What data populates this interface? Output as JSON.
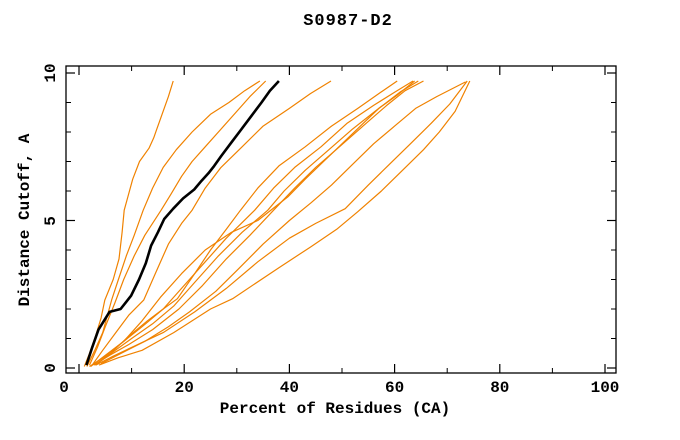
{
  "chart_data": {
    "type": "line",
    "title": "S0987-D2",
    "xlabel": "Percent of Residues (CA)",
    "ylabel": "Distance Cutoff, A",
    "xlim": [
      0,
      100
    ],
    "ylim": [
      0,
      10
    ],
    "x_major_ticks": [
      0,
      20,
      40,
      60,
      80,
      100
    ],
    "x_minor_ticks": [
      10,
      30,
      50,
      70,
      90
    ],
    "y_major_ticks": [
      0,
      5,
      10
    ],
    "y_minor_ticks": [
      1,
      2,
      3,
      4,
      6,
      7,
      8,
      9
    ],
    "x_tick_labels": [
      "0",
      "20",
      "40",
      "60",
      "80",
      "100"
    ],
    "y_tick_labels": [
      "0",
      "5",
      "10"
    ],
    "grid": false,
    "legend": "none",
    "colors": {
      "model_orange": "#f08200",
      "highlight_black": "#000000",
      "frame": "#000000"
    },
    "series": [
      {
        "name": "orange-1",
        "color": "#f08200",
        "width": 1.2,
        "points": [
          [
            1.0,
            0.05
          ],
          [
            2.0,
            0.5
          ],
          [
            3.0,
            1.0
          ],
          [
            4.2,
            1.7
          ],
          [
            4.9,
            2.3
          ],
          [
            6.5,
            3.0
          ],
          [
            7.6,
            3.7
          ],
          [
            8.2,
            4.6
          ],
          [
            8.6,
            5.35
          ],
          [
            10.2,
            6.4
          ],
          [
            11.5,
            7.0
          ],
          [
            13.3,
            7.45
          ],
          [
            14.2,
            7.8
          ],
          [
            14.8,
            8.1
          ],
          [
            16.3,
            8.85
          ],
          [
            17.0,
            9.2
          ],
          [
            17.9,
            9.73
          ]
        ]
      },
      {
        "name": "orange-2",
        "color": "#f08200",
        "width": 1.2,
        "points": [
          [
            1.5,
            0.05
          ],
          [
            3.0,
            0.6
          ],
          [
            4.5,
            1.2
          ],
          [
            6.2,
            2.3
          ],
          [
            7.5,
            3.0
          ],
          [
            9.0,
            3.8
          ],
          [
            10.5,
            4.5
          ],
          [
            12.2,
            5.35
          ],
          [
            14.0,
            6.1
          ],
          [
            16.0,
            6.8
          ],
          [
            18.5,
            7.4
          ],
          [
            21.5,
            8.0
          ],
          [
            25.0,
            8.6
          ],
          [
            28.5,
            9.0
          ],
          [
            31.5,
            9.4
          ],
          [
            34.4,
            9.73
          ]
        ]
      },
      {
        "name": "orange-3",
        "color": "#f08200",
        "width": 1.2,
        "points": [
          [
            2.0,
            0.1
          ],
          [
            3.5,
            0.7
          ],
          [
            5.0,
            1.4
          ],
          [
            6.8,
            2.2
          ],
          [
            8.5,
            3.0
          ],
          [
            10.5,
            3.8
          ],
          [
            12.5,
            4.5
          ],
          [
            15.6,
            5.35
          ],
          [
            17.5,
            5.9
          ],
          [
            19.5,
            6.5
          ],
          [
            21.5,
            7.0
          ],
          [
            24.0,
            7.5
          ],
          [
            27.0,
            8.1
          ],
          [
            30.0,
            8.7
          ],
          [
            32.5,
            9.2
          ],
          [
            35.5,
            9.73
          ]
        ]
      },
      {
        "name": "orange-4",
        "color": "#f08200",
        "width": 1.2,
        "points": [
          [
            2.5,
            0.1
          ],
          [
            4.5,
            0.6
          ],
          [
            7.0,
            1.2
          ],
          [
            9.5,
            1.8
          ],
          [
            12.3,
            2.3
          ],
          [
            14.5,
            3.2
          ],
          [
            17.0,
            4.2
          ],
          [
            19.5,
            4.9
          ],
          [
            21.5,
            5.35
          ],
          [
            24.0,
            6.1
          ],
          [
            27.0,
            6.8
          ],
          [
            31.0,
            7.5
          ],
          [
            35.0,
            8.2
          ],
          [
            40.0,
            8.8
          ],
          [
            44.0,
            9.3
          ],
          [
            47.9,
            9.73
          ]
        ]
      },
      {
        "name": "orange-5",
        "color": "#f08200",
        "width": 1.2,
        "points": [
          [
            3.0,
            0.1
          ],
          [
            6.0,
            0.5
          ],
          [
            9.0,
            1.0
          ],
          [
            13.0,
            1.6
          ],
          [
            16.0,
            2.0
          ],
          [
            18.7,
            2.35
          ],
          [
            22.0,
            3.2
          ],
          [
            25.0,
            4.0
          ],
          [
            28.0,
            4.7
          ],
          [
            30.7,
            5.35
          ],
          [
            34.0,
            6.1
          ],
          [
            38.0,
            6.85
          ],
          [
            43.0,
            7.5
          ],
          [
            48.0,
            8.2
          ],
          [
            53.0,
            8.8
          ],
          [
            57.0,
            9.3
          ],
          [
            60.5,
            9.73
          ]
        ]
      },
      {
        "name": "orange-6",
        "color": "#f08200",
        "width": 1.2,
        "points": [
          [
            2.0,
            0.05
          ],
          [
            5.0,
            0.4
          ],
          [
            8.5,
            0.9
          ],
          [
            12.0,
            1.4
          ],
          [
            16.0,
            2.0
          ],
          [
            20.0,
            2.8
          ],
          [
            24.0,
            3.6
          ],
          [
            28.0,
            4.4
          ],
          [
            33.4,
            5.35
          ],
          [
            37.0,
            6.1
          ],
          [
            41.0,
            6.8
          ],
          [
            46.0,
            7.5
          ],
          [
            51.0,
            8.3
          ],
          [
            56.0,
            8.9
          ],
          [
            60.0,
            9.35
          ],
          [
            63.5,
            9.73
          ]
        ]
      },
      {
        "name": "orange-7",
        "color": "#f08200",
        "width": 1.2,
        "points": [
          [
            3.5,
            0.15
          ],
          [
            6.5,
            0.55
          ],
          [
            10.0,
            1.0
          ],
          [
            14.0,
            1.5
          ],
          [
            18.0,
            2.1
          ],
          [
            22.0,
            2.9
          ],
          [
            26.5,
            3.8
          ],
          [
            31.0,
            4.6
          ],
          [
            35.9,
            5.35
          ],
          [
            39.0,
            6.0
          ],
          [
            43.0,
            6.7
          ],
          [
            47.5,
            7.4
          ],
          [
            52.0,
            8.1
          ],
          [
            57.0,
            8.8
          ],
          [
            61.0,
            9.35
          ],
          [
            64.5,
            9.73
          ]
        ]
      },
      {
        "name": "orange-8",
        "color": "#f08200",
        "width": 1.2,
        "points": [
          [
            2.8,
            0.1
          ],
          [
            6.0,
            0.45
          ],
          [
            9.5,
            0.8
          ],
          [
            14.0,
            1.3
          ],
          [
            19.0,
            2.0
          ],
          [
            23.5,
            2.8
          ],
          [
            28.0,
            3.7
          ],
          [
            32.5,
            4.5
          ],
          [
            37.0,
            5.35
          ],
          [
            41.0,
            6.1
          ],
          [
            45.0,
            6.8
          ],
          [
            49.5,
            7.5
          ],
          [
            54.0,
            8.2
          ],
          [
            58.5,
            8.9
          ],
          [
            62.0,
            9.4
          ],
          [
            65.5,
            9.73
          ]
        ]
      },
      {
        "name": "orange-9",
        "color": "#f08200",
        "width": 1.2,
        "points": [
          [
            3.2,
            0.1
          ],
          [
            6.5,
            0.4
          ],
          [
            10.0,
            0.7
          ],
          [
            16.0,
            1.2
          ],
          [
            22.0,
            1.9
          ],
          [
            28.0,
            2.7
          ],
          [
            34.0,
            3.6
          ],
          [
            40.0,
            4.4
          ],
          [
            45.0,
            4.9
          ],
          [
            50.6,
            5.4
          ],
          [
            55.0,
            6.2
          ],
          [
            59.0,
            6.9
          ],
          [
            63.0,
            7.6
          ],
          [
            67.0,
            8.3
          ],
          [
            70.5,
            8.95
          ],
          [
            73.8,
            9.73
          ]
        ]
      },
      {
        "name": "orange-10",
        "color": "#f08200",
        "width": 1.2,
        "points": [
          [
            3.8,
            0.1
          ],
          [
            7.5,
            0.35
          ],
          [
            12.0,
            0.6
          ],
          [
            18.0,
            1.2
          ],
          [
            25.0,
            2.0
          ],
          [
            29.2,
            2.35
          ],
          [
            38.0,
            3.4
          ],
          [
            44.0,
            4.1
          ],
          [
            49.0,
            4.7
          ],
          [
            53.0,
            5.3
          ],
          [
            57.5,
            6.0
          ],
          [
            61.5,
            6.7
          ],
          [
            65.5,
            7.4
          ],
          [
            68.5,
            8.0
          ],
          [
            71.5,
            8.7
          ],
          [
            74.3,
            9.73
          ]
        ]
      },
      {
        "name": "orange-11",
        "color": "#f08200",
        "width": 1.2,
        "points": [
          [
            2.2,
            0.05
          ],
          [
            5.5,
            0.5
          ],
          [
            8.5,
            0.9
          ],
          [
            12.0,
            1.6
          ],
          [
            15.5,
            2.4
          ],
          [
            19.5,
            3.2
          ],
          [
            24.0,
            4.0
          ],
          [
            29.0,
            4.6
          ],
          [
            34.0,
            5.0
          ],
          [
            39.7,
            5.8
          ],
          [
            43.0,
            6.4
          ],
          [
            46.5,
            7.0
          ],
          [
            50.0,
            7.6
          ],
          [
            53.5,
            8.2
          ],
          [
            57.0,
            8.8
          ],
          [
            60.5,
            9.25
          ],
          [
            63.8,
            9.73
          ]
        ]
      },
      {
        "name": "orange-12",
        "color": "#f08200",
        "width": 1.2,
        "points": [
          [
            4.2,
            0.15
          ],
          [
            8.0,
            0.5
          ],
          [
            12.5,
            0.9
          ],
          [
            17.0,
            1.4
          ],
          [
            21.0,
            1.9
          ],
          [
            26.0,
            2.6
          ],
          [
            30.0,
            3.3
          ],
          [
            35.0,
            4.2
          ],
          [
            40.0,
            5.0
          ],
          [
            44.1,
            5.6
          ],
          [
            48.0,
            6.2
          ],
          [
            52.0,
            6.9
          ],
          [
            56.0,
            7.6
          ],
          [
            60.0,
            8.2
          ],
          [
            64.0,
            8.8
          ],
          [
            68.0,
            9.2
          ],
          [
            73.5,
            9.7
          ]
        ]
      },
      {
        "name": "black-highlight",
        "color": "#000000",
        "width": 2.6,
        "points": [
          [
            1.4,
            0.1
          ],
          [
            2.5,
            0.7
          ],
          [
            3.7,
            1.3
          ],
          [
            5.8,
            1.9
          ],
          [
            7.9,
            2.0
          ],
          [
            9.9,
            2.45
          ],
          [
            11.4,
            3.0
          ],
          [
            12.7,
            3.55
          ],
          [
            13.7,
            4.15
          ],
          [
            15.0,
            4.6
          ],
          [
            16.2,
            5.05
          ],
          [
            17.9,
            5.4
          ],
          [
            19.8,
            5.75
          ],
          [
            21.9,
            6.05
          ],
          [
            23.3,
            6.35
          ],
          [
            24.6,
            6.6
          ],
          [
            25.7,
            6.85
          ],
          [
            27.1,
            7.2
          ],
          [
            29.0,
            7.65
          ],
          [
            30.9,
            8.1
          ],
          [
            32.8,
            8.55
          ],
          [
            34.7,
            9.0
          ],
          [
            36.3,
            9.4
          ],
          [
            38.0,
            9.73
          ]
        ]
      }
    ]
  }
}
